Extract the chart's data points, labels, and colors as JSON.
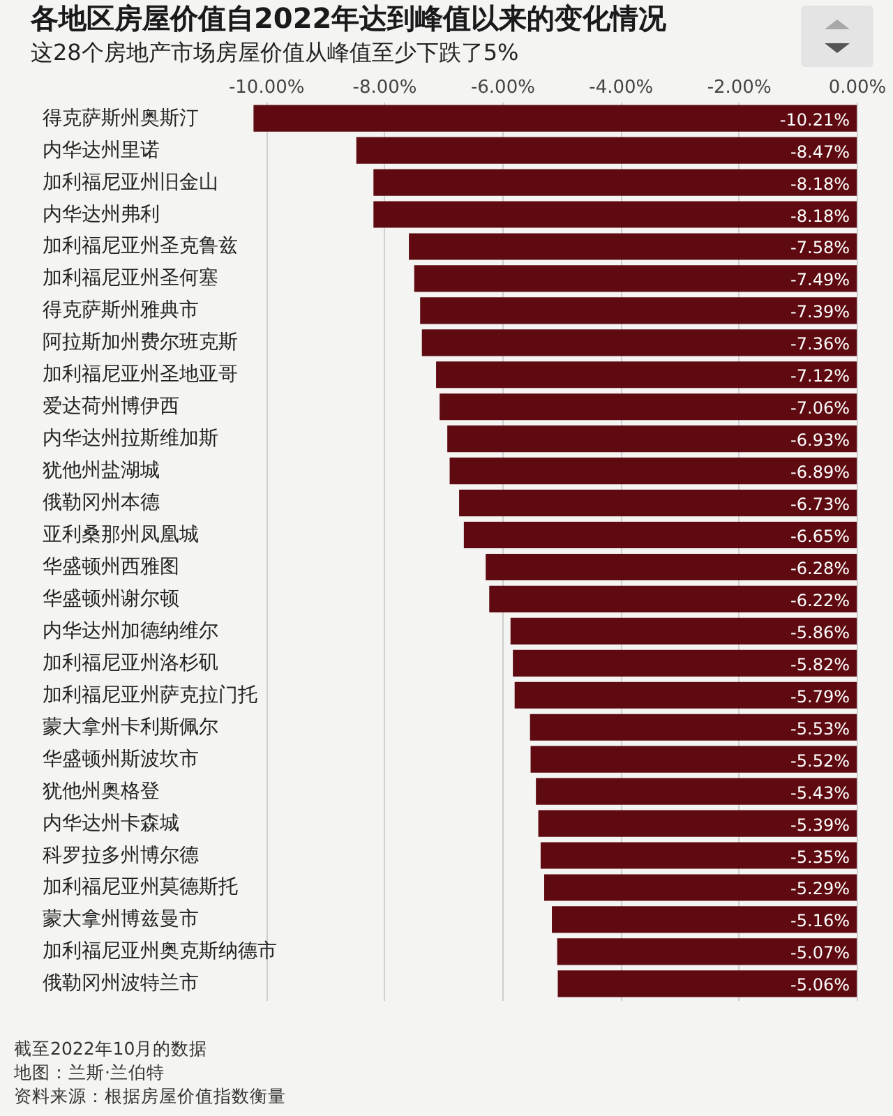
{
  "chart_data": {
    "type": "bar",
    "orientation": "horizontal",
    "title": "各地区房屋价值自2022年达到峰值以来的变化情况",
    "subtitle": "这28个房地产市场房屋价值从峰值至少下跌了5%",
    "categories": [
      "得克萨斯州奥斯汀",
      "内华达州里诺",
      "加利福尼亚州旧金山",
      "内华达州弗利",
      "加利福尼亚州圣克鲁兹",
      "加利福尼亚州圣何塞",
      "得克萨斯州雅典市",
      "阿拉斯加州费尔班克斯",
      "加利福尼亚州圣地亚哥",
      "爱达荷州博伊西",
      "内华达州拉斯维加斯",
      "犹他州盐湖城",
      "俄勒冈州本德",
      "亚利桑那州凤凰城",
      "华盛顿州西雅图",
      "华盛顿州谢尔顿",
      "内华达州加德纳维尔",
      "加利福尼亚州洛杉矶",
      "加利福尼亚州萨克拉门托",
      "蒙大拿州卡利斯佩尔",
      "华盛顿州斯波坎市",
      "犹他州奥格登",
      "内华达州卡森城",
      "科罗拉多州博尔德",
      "加利福尼亚州莫德斯托",
      "蒙大拿州博兹曼市",
      "加利福尼亚州奥克斯纳德市",
      "俄勒冈州波特兰市"
    ],
    "values": [
      -10.21,
      -8.47,
      -8.18,
      -8.18,
      -7.58,
      -7.49,
      -7.39,
      -7.36,
      -7.12,
      -7.06,
      -6.93,
      -6.89,
      -6.73,
      -6.65,
      -6.28,
      -6.22,
      -5.86,
      -5.82,
      -5.79,
      -5.53,
      -5.52,
      -5.43,
      -5.39,
      -5.35,
      -5.29,
      -5.16,
      -5.07,
      -5.06
    ],
    "value_labels": [
      "-10.21%",
      "-8.47%",
      "-8.18%",
      "-8.18%",
      "-7.58%",
      "-7.49%",
      "-7.39%",
      "-7.36%",
      "-7.12%",
      "-7.06%",
      "-6.93%",
      "-6.89%",
      "-6.73%",
      "-6.65%",
      "-6.28%",
      "-6.22%",
      "-5.86%",
      "-5.82%",
      "-5.79%",
      "-5.53%",
      "-5.52%",
      "-5.43%",
      "-5.39%",
      "-5.35%",
      "-5.29%",
      "-5.16%",
      "-5.07%",
      "-5.06%"
    ],
    "color": "#5e0a10",
    "xlim": [
      -10.25,
      0
    ],
    "xticks": [
      {
        "value": -10,
        "label": "-10.00%"
      },
      {
        "value": -8,
        "label": "-8.00%"
      },
      {
        "value": -6,
        "label": "-6.00%"
      },
      {
        "value": -4,
        "label": "-4.00%"
      },
      {
        "value": -2,
        "label": "-2.00%"
      },
      {
        "value": 0,
        "label": "0.00%"
      }
    ],
    "grid": "x",
    "annotations": [
      "截至2022年10月的数据",
      "地图：兰斯·兰伯特",
      "资料来源：根据房屋价值指数衡量"
    ]
  }
}
